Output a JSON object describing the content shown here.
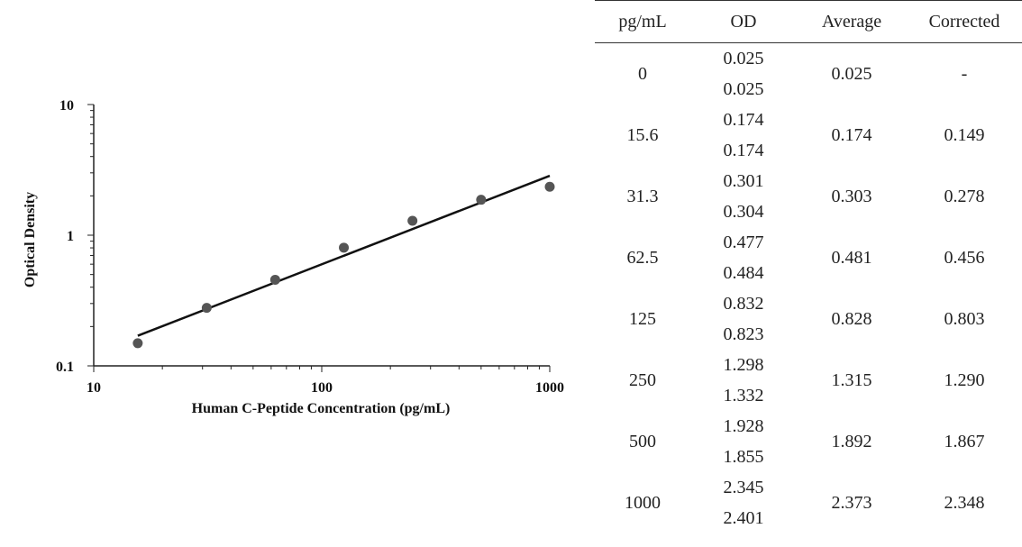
{
  "chart_data": {
    "type": "scatter",
    "xlabel": "Human C-Peptide Concentration (pg/mL)",
    "ylabel": "Optical  Density",
    "x_scale": "log",
    "y_scale": "log",
    "xlim": [
      10,
      1000
    ],
    "ylim": [
      0.1,
      10
    ],
    "x_ticks": [
      "10",
      "100",
      "1000"
    ],
    "y_ticks": [
      "0.1",
      "1",
      "10"
    ],
    "grid": false,
    "series": [
      {
        "x": [
          15.6,
          31.3,
          62.5,
          125,
          250,
          500,
          1000
        ],
        "y": [
          0.149,
          0.278,
          0.456,
          0.803,
          1.29,
          1.867,
          2.348
        ],
        "marker_color": "#555555"
      }
    ],
    "fit_line": {
      "x": [
        15.6,
        1000
      ],
      "y": [
        0.17,
        2.85
      ],
      "color": "#111111"
    }
  },
  "table": {
    "headers": [
      "pg/mL",
      "OD",
      "Average",
      "Corrected"
    ],
    "rows": [
      {
        "conc": "0",
        "od": [
          "0.025",
          "0.025"
        ],
        "avg": "0.025",
        "corr": "-"
      },
      {
        "conc": "15.6",
        "od": [
          "0.174",
          "0.174"
        ],
        "avg": "0.174",
        "corr": "0.149"
      },
      {
        "conc": "31.3",
        "od": [
          "0.301",
          "0.304"
        ],
        "avg": "0.303",
        "corr": "0.278"
      },
      {
        "conc": "62.5",
        "od": [
          "0.477",
          "0.484"
        ],
        "avg": "0.481",
        "corr": "0.456"
      },
      {
        "conc": "125",
        "od": [
          "0.832",
          "0.823"
        ],
        "avg": "0.828",
        "corr": "0.803"
      },
      {
        "conc": "250",
        "od": [
          "1.298",
          "1.332"
        ],
        "avg": "1.315",
        "corr": "1.290"
      },
      {
        "conc": "500",
        "od": [
          "1.928",
          "1.855"
        ],
        "avg": "1.892",
        "corr": "1.867"
      },
      {
        "conc": "1000",
        "od": [
          "2.345",
          "2.401"
        ],
        "avg": "2.373",
        "corr": "2.348"
      }
    ]
  }
}
